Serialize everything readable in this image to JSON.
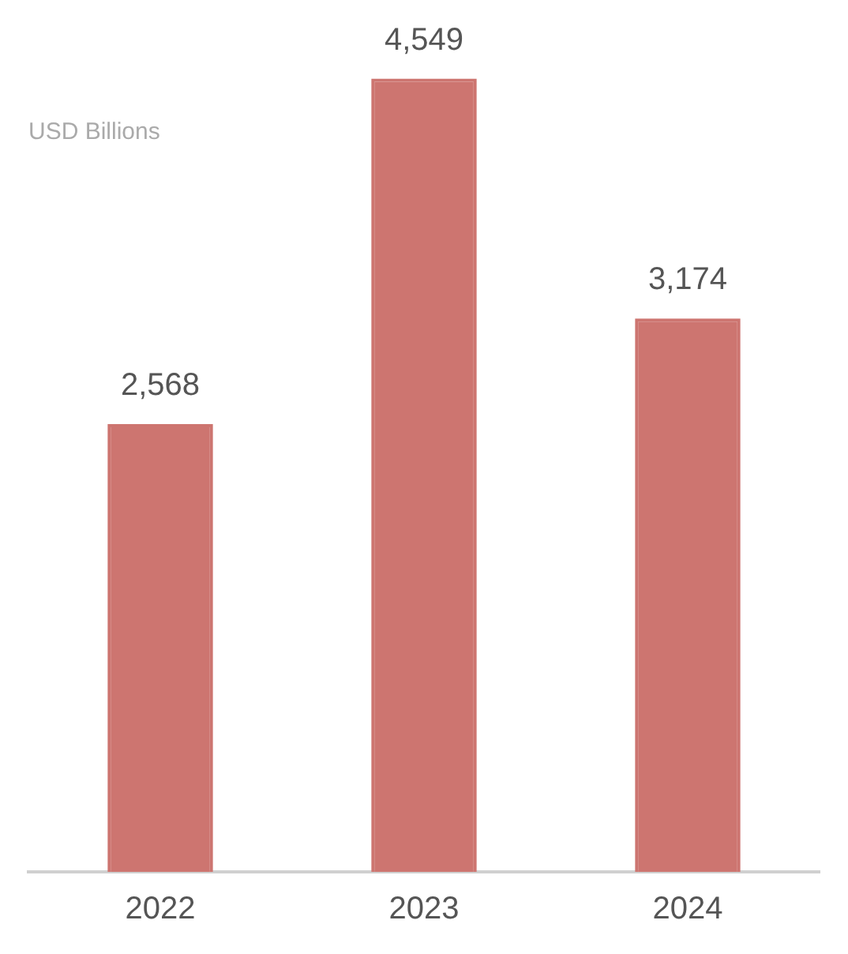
{
  "chart_data": {
    "type": "bar",
    "ylabel": "USD Billions",
    "categories": [
      "2022",
      "2023",
      "2024"
    ],
    "series": [
      {
        "color": "#cd7570",
        "values": [
          2568,
          4549,
          3174
        ],
        "value_labels": [
          "2,568",
          "4,549",
          "3,174"
        ]
      }
    ],
    "grid": false,
    "legend": false,
    "tick_labels": "x"
  }
}
